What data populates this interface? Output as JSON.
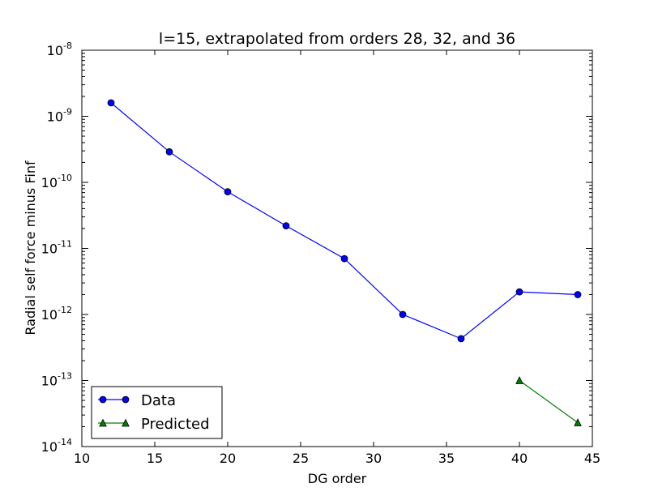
{
  "chart_data": {
    "type": "line",
    "title": "l=15, extrapolated from orders 28, 32, and 36",
    "xlabel": "DG order",
    "ylabel": "Radial self force minus Finf",
    "xlim": [
      10,
      45
    ],
    "ylim": [
      1e-14,
      1e-08
    ],
    "yscale": "log",
    "grid": false,
    "legend_placement": "bottom-left",
    "xticks": [
      {
        "value": 10,
        "label": "10"
      },
      {
        "value": 15,
        "label": "15"
      },
      {
        "value": 20,
        "label": "20"
      },
      {
        "value": 25,
        "label": "25"
      },
      {
        "value": 30,
        "label": "30"
      },
      {
        "value": 35,
        "label": "35"
      },
      {
        "value": 40,
        "label": "40"
      },
      {
        "value": 45,
        "label": "45"
      }
    ],
    "yticks": [
      {
        "exp": -8,
        "base": "10",
        "sup": "-8"
      },
      {
        "exp": -9,
        "base": "10",
        "sup": "-9"
      },
      {
        "exp": -10,
        "base": "10",
        "sup": "-10"
      },
      {
        "exp": -11,
        "base": "10",
        "sup": "-11"
      },
      {
        "exp": -12,
        "base": "10",
        "sup": "-12"
      },
      {
        "exp": -13,
        "base": "10",
        "sup": "-13"
      },
      {
        "exp": -14,
        "base": "10",
        "sup": "-14"
      }
    ],
    "series": [
      {
        "name": "Data",
        "color": "#0000ff",
        "marker": "circle",
        "x": [
          12,
          16,
          20,
          24,
          28,
          32,
          36,
          40,
          44
        ],
        "y": [
          1.6e-09,
          2.9e-10,
          7.2e-11,
          2.2e-11,
          7e-12,
          1e-12,
          4.3e-13,
          2.2e-12,
          2e-12
        ]
      },
      {
        "name": "Predicted",
        "color": "#008000",
        "marker": "triangle",
        "x": [
          40,
          44
        ],
        "y": [
          1e-13,
          2.3e-14
        ]
      }
    ]
  }
}
